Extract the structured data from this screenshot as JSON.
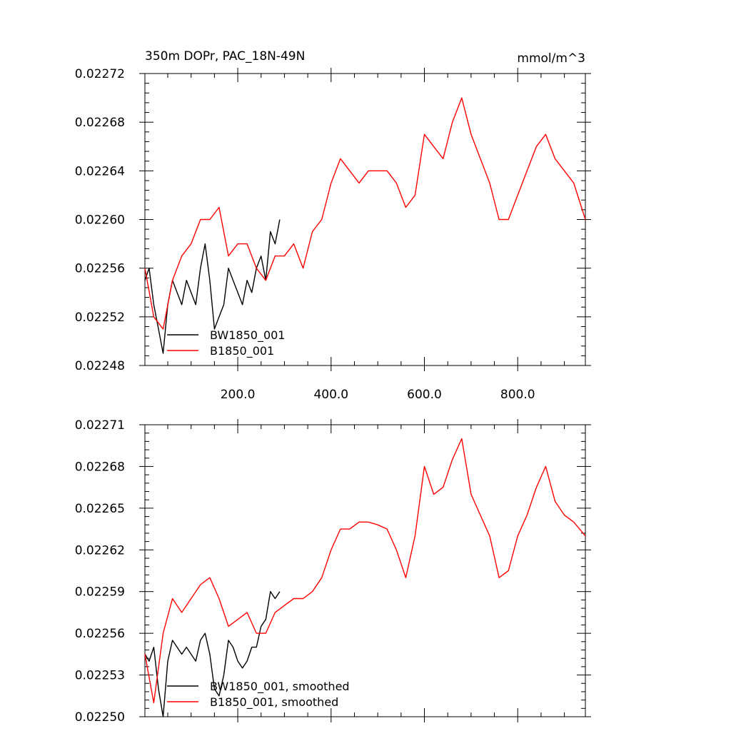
{
  "figure": {
    "title": "350m DOPr, PAC_18N-49N",
    "units": "mmol/m^3"
  },
  "chart_data": [
    {
      "type": "line",
      "title": "350m DOPr, PAC_18N-49N",
      "units_label": "mmol/m^3",
      "xlabel": "",
      "ylabel": "",
      "xlim": [
        1,
        945
      ],
      "ylim": [
        0.02248,
        0.02272
      ],
      "x_ticks": [
        200,
        400,
        600,
        800
      ],
      "x_tick_labels": [
        "200.0",
        "400.0",
        "600.0",
        "800.0"
      ],
      "y_ticks": [
        0.02248,
        0.02252,
        0.02256,
        0.0226,
        0.02264,
        0.02268,
        0.02272
      ],
      "y_tick_labels": [
        "0.02248",
        "0.02252",
        "0.02256",
        "0.02260",
        "0.02264",
        "0.02268",
        "0.02272"
      ],
      "legend": {
        "position": "bottom-left",
        "entries": [
          "BW1850_001",
          "B1850_001"
        ]
      },
      "series": [
        {
          "name": "BW1850_001",
          "color": "#000000",
          "x": [
            1,
            10,
            20,
            30,
            40,
            50,
            60,
            70,
            80,
            90,
            100,
            110,
            120,
            130,
            140,
            150,
            160,
            170,
            180,
            190,
            200,
            210,
            220,
            230,
            240,
            250,
            260,
            270,
            280,
            290
          ],
          "y": [
            0.02255,
            0.02256,
            0.02253,
            0.02251,
            0.02249,
            0.02253,
            0.02255,
            0.02254,
            0.02253,
            0.02255,
            0.02254,
            0.02253,
            0.02256,
            0.02258,
            0.02255,
            0.02251,
            0.02252,
            0.02253,
            0.02256,
            0.02255,
            0.02254,
            0.02253,
            0.02255,
            0.02254,
            0.02256,
            0.02257,
            0.02255,
            0.02259,
            0.02258,
            0.0226
          ]
        },
        {
          "name": "B1850_001",
          "color": "#ff0000",
          "x": [
            1,
            20,
            40,
            60,
            80,
            100,
            120,
            140,
            160,
            180,
            200,
            220,
            240,
            260,
            280,
            300,
            320,
            340,
            360,
            380,
            400,
            420,
            440,
            460,
            480,
            500,
            520,
            540,
            560,
            580,
            600,
            620,
            640,
            660,
            680,
            700,
            720,
            740,
            760,
            780,
            800,
            820,
            840,
            860,
            880,
            900,
            920,
            945
          ],
          "y": [
            0.02256,
            0.02252,
            0.02251,
            0.02255,
            0.02257,
            0.02258,
            0.0226,
            0.0226,
            0.02261,
            0.02257,
            0.02258,
            0.02258,
            0.02256,
            0.02255,
            0.02257,
            0.02257,
            0.02258,
            0.02256,
            0.02259,
            0.0226,
            0.02263,
            0.02265,
            0.02264,
            0.02263,
            0.02264,
            0.02264,
            0.02264,
            0.02263,
            0.02261,
            0.02262,
            0.02267,
            0.02266,
            0.02265,
            0.02268,
            0.0227,
            0.02267,
            0.02265,
            0.02263,
            0.0226,
            0.0226,
            0.02262,
            0.02264,
            0.02266,
            0.02267,
            0.02265,
            0.02264,
            0.02263,
            0.0226
          ]
        }
      ]
    },
    {
      "type": "line",
      "title": "",
      "xlabel": "",
      "ylabel": "",
      "xlim": [
        1,
        945
      ],
      "ylim": [
        0.0225,
        0.02271
      ],
      "x_ticks": [
        200,
        400,
        600,
        800
      ],
      "x_tick_labels": [],
      "y_ticks": [
        0.0225,
        0.02253,
        0.02256,
        0.02259,
        0.02262,
        0.02265,
        0.02268,
        0.02271
      ],
      "y_tick_labels": [
        "0.02250",
        "0.02253",
        "0.02256",
        "0.02259",
        "0.02262",
        "0.02265",
        "0.02268",
        "0.02271"
      ],
      "legend": {
        "position": "bottom-left",
        "entries": [
          "BW1850_001, smoothed",
          "B1850_001, smoothed"
        ]
      },
      "series": [
        {
          "name": "BW1850_001, smoothed",
          "color": "#000000",
          "x": [
            1,
            10,
            20,
            30,
            40,
            50,
            60,
            70,
            80,
            90,
            100,
            110,
            120,
            130,
            140,
            150,
            160,
            170,
            180,
            190,
            200,
            210,
            220,
            230,
            240,
            250,
            260,
            270,
            280,
            290
          ],
          "y": [
            0.022545,
            0.02254,
            0.02255,
            0.02252,
            0.0225,
            0.02254,
            0.022555,
            0.02255,
            0.022545,
            0.02255,
            0.022545,
            0.02254,
            0.022555,
            0.02256,
            0.022545,
            0.02252,
            0.022515,
            0.02253,
            0.022555,
            0.02255,
            0.02254,
            0.022535,
            0.02254,
            0.02255,
            0.02255,
            0.022565,
            0.02257,
            0.02259,
            0.022585,
            0.02259
          ]
        },
        {
          "name": "B1850_001, smoothed",
          "color": "#ff0000",
          "x": [
            1,
            20,
            40,
            60,
            80,
            100,
            120,
            140,
            160,
            180,
            200,
            220,
            240,
            260,
            280,
            300,
            320,
            340,
            360,
            380,
            400,
            420,
            440,
            460,
            480,
            500,
            520,
            540,
            560,
            580,
            600,
            620,
            640,
            660,
            680,
            700,
            720,
            740,
            760,
            780,
            800,
            820,
            840,
            860,
            880,
            900,
            920,
            945
          ],
          "y": [
            0.022545,
            0.02251,
            0.02256,
            0.022585,
            0.022575,
            0.022585,
            0.022595,
            0.0226,
            0.022585,
            0.022565,
            0.02257,
            0.022575,
            0.02256,
            0.02256,
            0.022575,
            0.02258,
            0.022585,
            0.022585,
            0.02259,
            0.0226,
            0.02262,
            0.022635,
            0.022635,
            0.02264,
            0.02264,
            0.022638,
            0.022635,
            0.02262,
            0.0226,
            0.02263,
            0.02268,
            0.02266,
            0.022665,
            0.022685,
            0.0227,
            0.02266,
            0.022645,
            0.02263,
            0.0226,
            0.022605,
            0.02263,
            0.022645,
            0.022665,
            0.02268,
            0.022655,
            0.022645,
            0.02264,
            0.02263
          ]
        }
      ]
    }
  ]
}
